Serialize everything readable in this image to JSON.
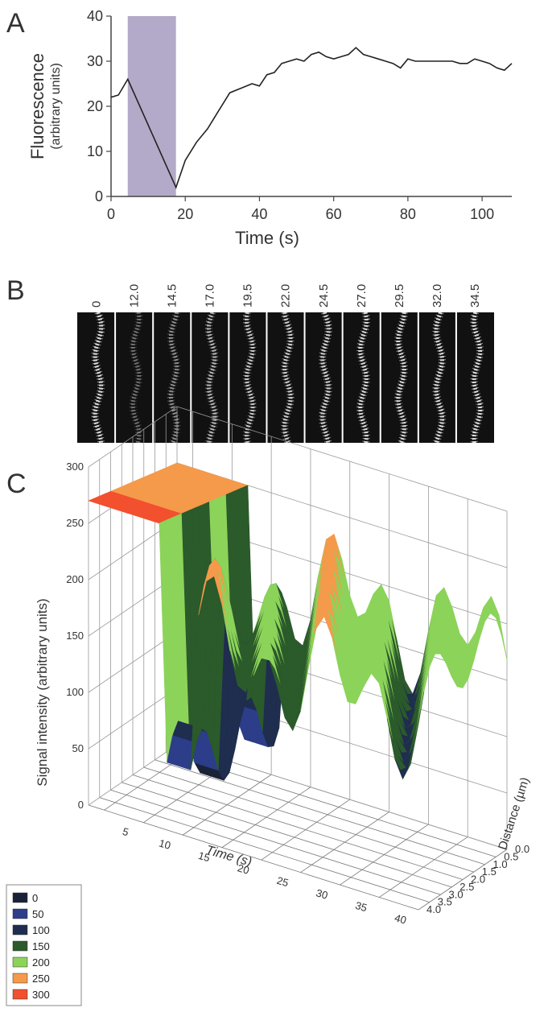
{
  "panels": {
    "a": "A",
    "b": "B",
    "c": "C"
  },
  "chart_data": [
    {
      "type": "line",
      "xlabel": "Time  (s)",
      "ylabel": "Fluorescence",
      "ylabel_sub": "(arbitrary units)",
      "xlim": [
        0,
        108
      ],
      "ylim": [
        0,
        40
      ],
      "xticks": [
        "0",
        "20",
        "40",
        "60",
        "80",
        "100"
      ],
      "yticks": [
        "0",
        "10",
        "20",
        "30",
        "40"
      ],
      "bleach_region": [
        4.5,
        17.5
      ],
      "bleach_color": "#b2aac8",
      "series": [
        {
          "x": [
            0,
            2,
            4.5,
            17.5,
            20,
            23,
            26,
            29,
            32,
            35,
            38,
            40,
            42,
            44,
            46,
            48,
            50,
            52,
            54,
            56,
            58,
            60,
            62,
            64,
            66,
            68,
            70,
            72,
            74,
            76,
            78,
            80,
            82,
            84,
            86,
            88,
            90,
            92,
            94,
            96,
            98,
            100,
            102,
            104,
            106,
            108
          ],
          "y": [
            22,
            22.5,
            26,
            2,
            8,
            12,
            15,
            19,
            23,
            24,
            25,
            24.5,
            27,
            27.5,
            29.5,
            30,
            30.5,
            30,
            31.5,
            32,
            31,
            30.5,
            31,
            31.5,
            33,
            31.5,
            31,
            30.5,
            30,
            29.5,
            28.5,
            30.5,
            30,
            30,
            30,
            30,
            30,
            30,
            29.5,
            29.5,
            30.5,
            30,
            29.5,
            28.5,
            28,
            29.5
          ]
        }
      ]
    },
    {
      "type": "table",
      "column_labels": [
        "0",
        "12.0",
        "14.5",
        "17.0",
        "19.5",
        "22.0",
        "24.5",
        "27.0",
        "29.5",
        "32.0",
        "34.5"
      ],
      "intensity": [
        1.0,
        0.15,
        0.35,
        0.65,
        0.8,
        0.85,
        0.9,
        0.95,
        0.95,
        1.0,
        1.0
      ]
    },
    {
      "type": "heatmap",
      "xlabel": "Time (s)",
      "ylabel": "Signal intensity (arbitrary units)",
      "zlabel": "Distance (µm)",
      "xticks": [
        "5",
        "10",
        "15",
        "20",
        "25",
        "30",
        "35",
        "40"
      ],
      "yticks": [
        "0",
        "50",
        "100",
        "150",
        "200",
        "250",
        "300"
      ],
      "zticks": [
        "0.0",
        "0.5",
        "1.0",
        "1.5",
        "2.0",
        "2.5",
        "3.0",
        "3.5",
        "4.0"
      ],
      "legend": [
        {
          "label": "0",
          "color": "#1a2238"
        },
        {
          "label": "50",
          "color": "#2c3d8a"
        },
        {
          "label": "100",
          "color": "#1f2d4f"
        },
        {
          "label": "150",
          "color": "#2b5a2b"
        },
        {
          "label": "200",
          "color": "#8cd35a"
        },
        {
          "label": "250",
          "color": "#f49a4a"
        },
        {
          "label": "300",
          "color": "#f2502e"
        }
      ]
    }
  ]
}
